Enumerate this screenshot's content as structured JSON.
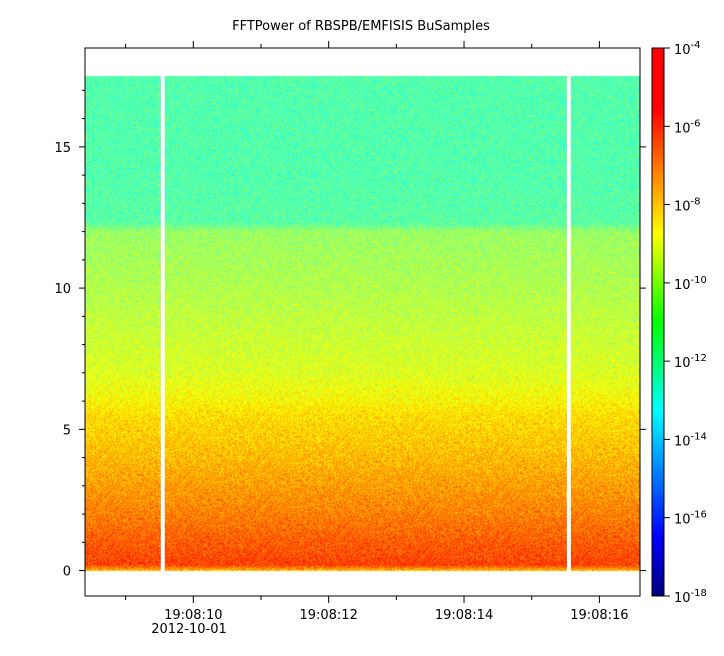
{
  "chart_data": {
    "type": "heatmap",
    "title": "FFTPower of RBSPB/EMFISIS  BuSamples",
    "xlabel": "",
    "ylabel": "",
    "x_tick_labels": [
      "19:08:10",
      "19:08:12",
      "19:08:14",
      "19:08:16"
    ],
    "x_tick_values_sec": [
      10,
      12,
      14,
      16
    ],
    "x_date_label": "2012-10-01",
    "xlim_sec": [
      8.4,
      16.6
    ],
    "y_tick_labels": [
      "0",
      "5",
      "10",
      "15"
    ],
    "y_tick_values": [
      0,
      5,
      10,
      15
    ],
    "ylim": [
      -0.9,
      18.5
    ],
    "data_y_range": [
      0.0,
      17.5
    ],
    "gaps_sec": [
      9.55,
      15.55
    ],
    "colorbar": {
      "scale": "log",
      "range": [
        1e-18,
        0.0001
      ],
      "tick_bases": [
        "10",
        "10",
        "10",
        "10",
        "10",
        "10",
        "10",
        "10"
      ],
      "tick_exponents": [
        "-4",
        "-6",
        "-8",
        "-10",
        "-12",
        "-14",
        "-16",
        "-18"
      ],
      "tick_values_log10": [
        -4,
        -6,
        -8,
        -10,
        -12,
        -14,
        -16,
        -18
      ]
    },
    "power_profile": {
      "frequency": [
        0.0,
        0.2,
        0.5,
        1.0,
        2.0,
        3.0,
        4.0,
        5.5,
        6.0,
        7.0,
        8.0,
        10.0,
        12.0,
        12.3,
        14.0,
        17.5
      ],
      "log10_power": [
        -8.3,
        -6.6,
        -6.8,
        -7.0,
        -7.5,
        -7.9,
        -8.3,
        -8.8,
        -9.2,
        -9.7,
        -9.9,
        -10.3,
        -10.6,
        -11.5,
        -11.6,
        -11.6
      ]
    }
  }
}
